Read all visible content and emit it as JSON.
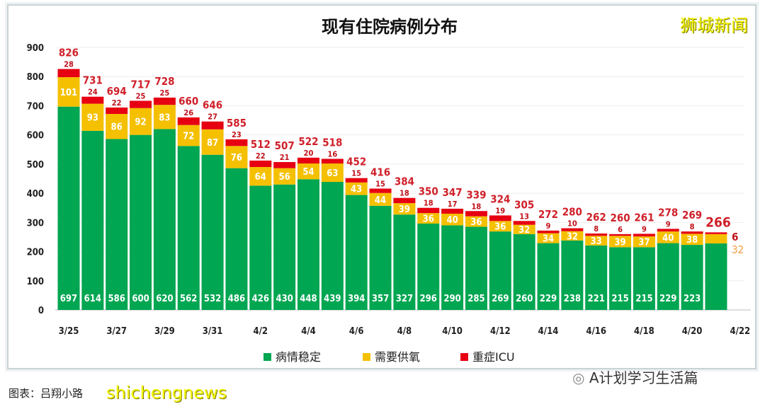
{
  "chart_data": {
    "type": "bar",
    "stacked": true,
    "title": "现有住院病例分布",
    "categories": [
      "3/25",
      "3/26",
      "3/27",
      "3/28",
      "3/29",
      "3/30",
      "3/31",
      "4/1",
      "4/2",
      "4/3",
      "4/4",
      "4/5",
      "4/6",
      "4/7",
      "4/8",
      "4/9",
      "4/10",
      "4/11",
      "4/12",
      "4/13",
      "4/14",
      "4/15",
      "4/16",
      "4/17",
      "4/18",
      "4/19",
      "4/20",
      "4/21",
      "4/22"
    ],
    "tick_labels": [
      "3/25",
      "3/27",
      "3/29",
      "3/31",
      "4/2",
      "4/4",
      "4/6",
      "4/8",
      "4/10",
      "4/12",
      "4/14",
      "4/16",
      "4/18",
      "4/20",
      "4/22"
    ],
    "series": [
      {
        "name": "病情稳定",
        "color": "#00a651",
        "values": [
          697,
          614,
          586,
          600,
          620,
          562,
          532,
          486,
          426,
          430,
          448,
          439,
          394,
          357,
          327,
          296,
          290,
          285,
          269,
          260,
          229,
          238,
          221,
          215,
          215,
          229,
          223,
          228,
          null
        ]
      },
      {
        "name": "需要供氧",
        "color": "#f5c000",
        "values": [
          101,
          93,
          86,
          92,
          83,
          72,
          87,
          76,
          64,
          56,
          54,
          63,
          43,
          44,
          39,
          36,
          40,
          36,
          36,
          32,
          34,
          32,
          33,
          39,
          37,
          40,
          38,
          32,
          null
        ]
      },
      {
        "name": "重症ICU",
        "color": "#e60012",
        "values": [
          28,
          24,
          22,
          25,
          25,
          26,
          27,
          23,
          22,
          21,
          20,
          16,
          15,
          15,
          18,
          18,
          17,
          18,
          19,
          13,
          9,
          10,
          8,
          6,
          9,
          9,
          8,
          6,
          null
        ]
      }
    ],
    "totals": [
      826,
      731,
      694,
      717,
      728,
      660,
      646,
      585,
      512,
      507,
      522,
      518,
      452,
      416,
      384,
      350,
      347,
      339,
      324,
      305,
      272,
      280,
      262,
      260,
      261,
      278,
      269,
      266,
      null
    ],
    "ylim": [
      0,
      900
    ],
    "yticks": [
      0,
      100,
      200,
      300,
      400,
      500,
      600,
      700,
      800,
      900
    ],
    "grid": true,
    "legend": "bottom"
  },
  "watermark_top": "狮城新闻",
  "watermark_bottom": "shichengnews",
  "caption": "图表：吕翔小路",
  "account": "A计划学习生活篇"
}
